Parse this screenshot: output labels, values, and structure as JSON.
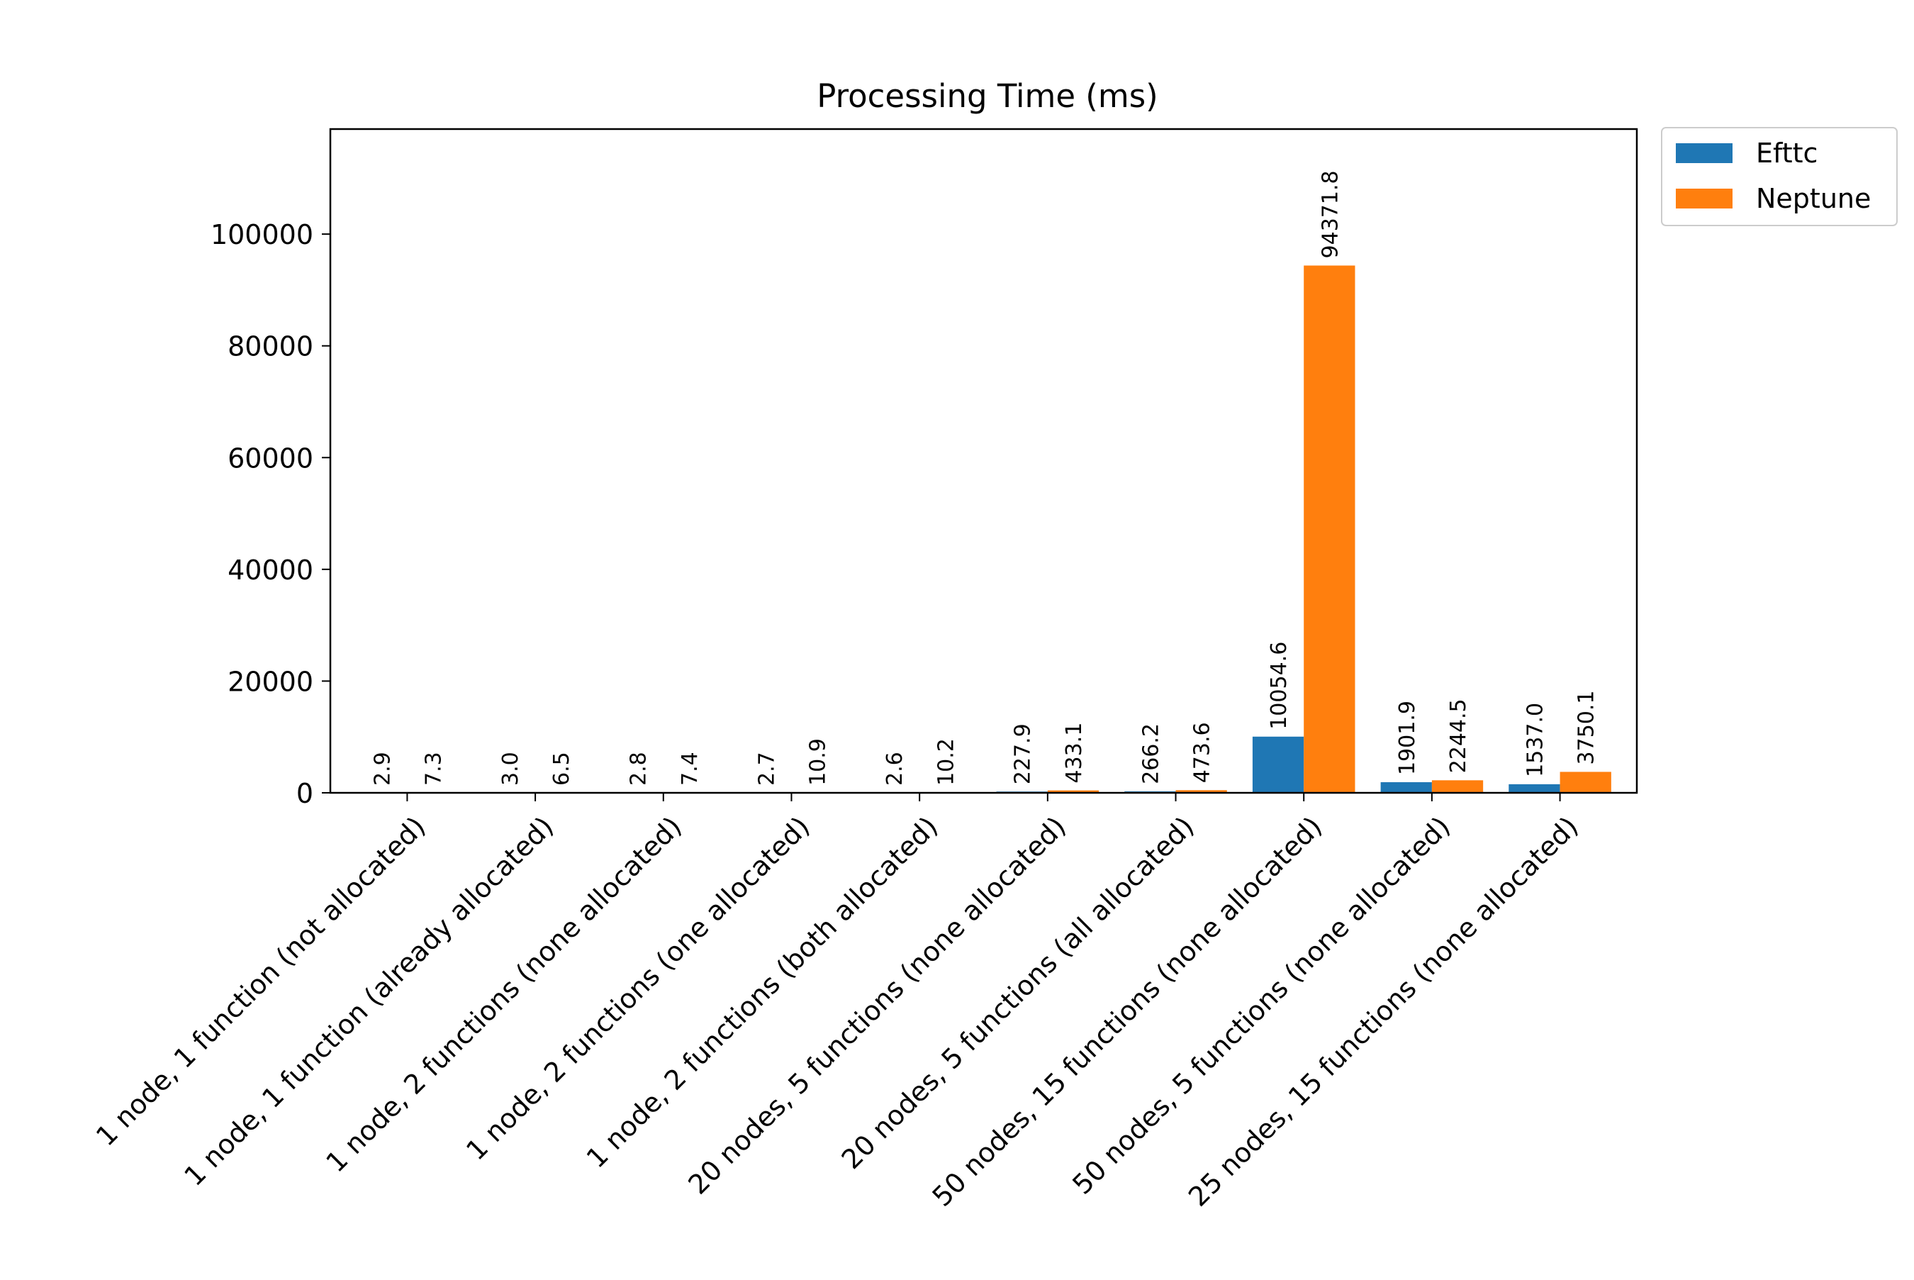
{
  "chart_data": {
    "type": "bar",
    "title": "Processing Time (ms)",
    "xlabel": "",
    "ylabel": "",
    "ylim": [
      0,
      118800
    ],
    "yticks": [
      0,
      20000,
      40000,
      60000,
      80000,
      100000
    ],
    "grid": false,
    "legend_position": "outside top-right",
    "categories": [
      "1 node, 1 function (not allocated)",
      "1 node, 1 function (already allocated)",
      "1 node, 2 functions (none allocated)",
      "1 node, 2 functions (one allocated)",
      "1 node, 2 functions (both allocated)",
      "20 nodes, 5 functions (none allocated)",
      "20 nodes, 5 functions (all allocated)",
      "50 nodes, 15 functions (none allocated)",
      "50 nodes, 5 functions (none allocated)",
      "25 nodes, 15 functions (none allocated)"
    ],
    "series": [
      {
        "name": "Efttc",
        "color": "#1f77b4",
        "values": [
          2.9,
          3.0,
          2.8,
          2.7,
          2.6,
          227.9,
          266.2,
          10054.6,
          1901.9,
          1537.0
        ],
        "labels": [
          "2.9",
          "3.0",
          "2.8",
          "2.7",
          "2.6",
          "227.9",
          "266.2",
          "10054.6",
          "1901.9",
          "1537.0"
        ]
      },
      {
        "name": "Neptune",
        "color": "#ff7f0e",
        "values": [
          7.3,
          6.5,
          7.4,
          10.9,
          10.2,
          433.1,
          473.6,
          94371.8,
          2244.5,
          3750.1
        ],
        "labels": [
          "7.3",
          "6.5",
          "7.4",
          "10.9",
          "10.2",
          "433.1",
          "473.6",
          "94371.8",
          "2244.5",
          "3750.1"
        ]
      }
    ]
  }
}
